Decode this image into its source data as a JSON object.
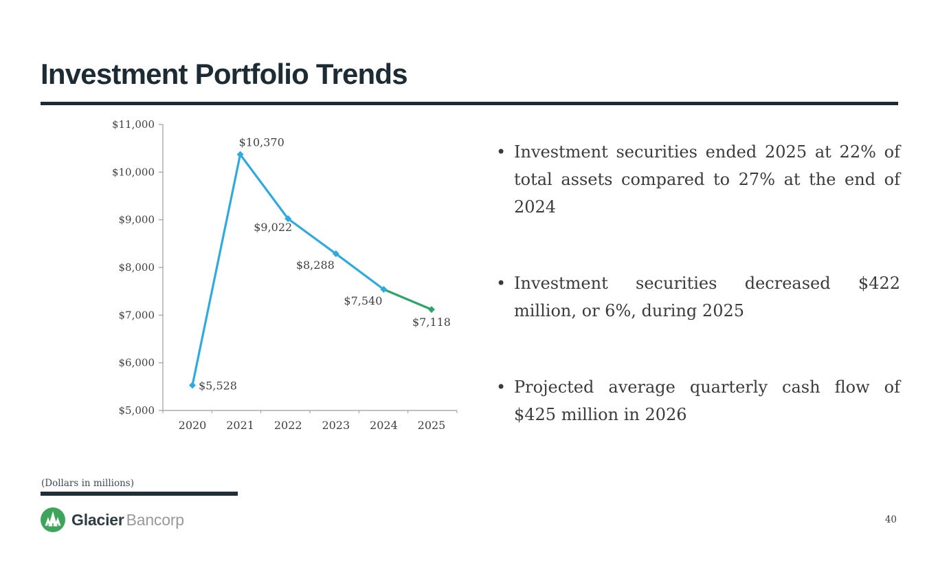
{
  "slide": {
    "title": "Investment Portfolio Trends",
    "page_number": "40",
    "footnote": "(Dollars in millions)"
  },
  "logo": {
    "primary": "Glacier",
    "secondary": "Bancorp",
    "icon": "pine-trees-circle-icon",
    "icon_color": "#3EA45B"
  },
  "bullets": [
    "Investment securities ended 2025 at 22% of total assets compared to 27% at the end of 2024",
    "Investment securities decreased $422 million, or 6%, during 2025",
    "Projected average quarterly cash flow of $425 million in 2026"
  ],
  "chart_data": {
    "type": "line",
    "title": "",
    "xlabel": "",
    "ylabel": "",
    "units": "Dollars in millions",
    "categories": [
      "2020",
      "2021",
      "2022",
      "2023",
      "2024",
      "2025"
    ],
    "series": [
      {
        "name": "Investment securities",
        "values": [
          5528,
          10370,
          9022,
          8288,
          7540,
          7118
        ]
      }
    ],
    "data_labels": [
      "$5,528",
      "$10,370",
      "$9,022",
      "$8,288",
      "$7,540",
      "$7,118"
    ],
    "label_positions": [
      "right",
      "above",
      "left-below",
      "below-left",
      "below-left",
      "below"
    ],
    "ylim": [
      5000,
      11000
    ],
    "ytick_interval": 1000,
    "ytick_labels": [
      "$5,000",
      "$6,000",
      "$7,000",
      "$8,000",
      "$9,000",
      "$10,000",
      "$11,000"
    ],
    "grid": false,
    "legend": "none",
    "colors": {
      "line_main": "#30A9DE",
      "line_last_segment": "#2FA368",
      "axis": "#9b9b9b"
    }
  }
}
